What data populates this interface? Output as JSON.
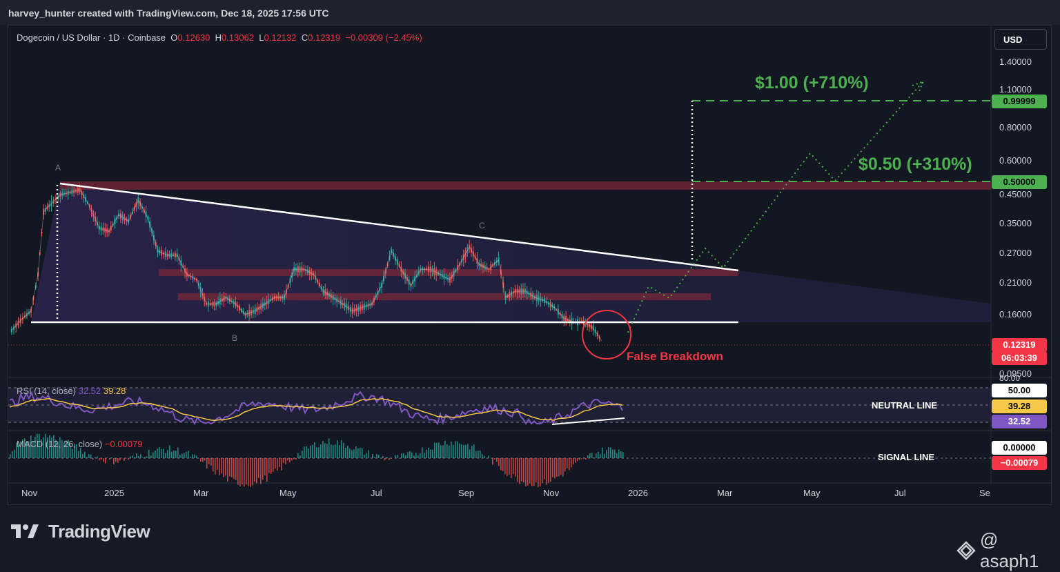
{
  "header": {
    "credit": "harvey_hunter created with TradingView.com, Dec 18, 2025 17:56 UTC"
  },
  "legend": {
    "symbol": "Dogecoin / US Dollar · 1D · Coinbase",
    "o_label": "O",
    "o": "0.12630",
    "h_label": "H",
    "h": "0.13062",
    "l_label": "L",
    "l": "0.12132",
    "c_label": "C",
    "c": "0.12319",
    "change": "−0.00309 (−2.45%)"
  },
  "currency_button": "USD",
  "chart_data": {
    "type": "line",
    "series": [
      {
        "values_by_date": [
          [
            "2024-10-20",
            0.135
          ],
          [
            "2024-10-28",
            0.15
          ],
          [
            "2024-11-03",
            0.16
          ],
          [
            "2024-11-08",
            0.22
          ],
          [
            "2024-11-12",
            0.38
          ],
          [
            "2024-11-16",
            0.4
          ],
          [
            "2024-11-24",
            0.44
          ],
          [
            "2024-12-01",
            0.45
          ],
          [
            "2024-12-08",
            0.46
          ],
          [
            "2024-12-15",
            0.4
          ],
          [
            "2024-12-22",
            0.33
          ],
          [
            "2024-12-29",
            0.32
          ],
          [
            "2025-01-05",
            0.37
          ],
          [
            "2025-01-12",
            0.35
          ],
          [
            "2025-01-19",
            0.42
          ],
          [
            "2025-01-26",
            0.36
          ],
          [
            "2025-02-02",
            0.27
          ],
          [
            "2025-02-09",
            0.26
          ],
          [
            "2025-02-16",
            0.26
          ],
          [
            "2025-02-23",
            0.22
          ],
          [
            "2025-03-02",
            0.21
          ],
          [
            "2025-03-09",
            0.17
          ],
          [
            "2025-03-16",
            0.17
          ],
          [
            "2025-03-23",
            0.18
          ],
          [
            "2025-03-30",
            0.17
          ],
          [
            "2025-04-06",
            0.155
          ],
          [
            "2025-04-13",
            0.16
          ],
          [
            "2025-04-20",
            0.17
          ],
          [
            "2025-04-27",
            0.18
          ],
          [
            "2025-05-04",
            0.18
          ],
          [
            "2025-05-11",
            0.23
          ],
          [
            "2025-05-18",
            0.23
          ],
          [
            "2025-05-25",
            0.22
          ],
          [
            "2025-06-01",
            0.19
          ],
          [
            "2025-06-08",
            0.18
          ],
          [
            "2025-06-15",
            0.17
          ],
          [
            "2025-06-22",
            0.16
          ],
          [
            "2025-06-29",
            0.165
          ],
          [
            "2025-07-06",
            0.17
          ],
          [
            "2025-07-13",
            0.2
          ],
          [
            "2025-07-20",
            0.27
          ],
          [
            "2025-07-27",
            0.23
          ],
          [
            "2025-08-03",
            0.2
          ],
          [
            "2025-08-10",
            0.23
          ],
          [
            "2025-08-17",
            0.23
          ],
          [
            "2025-08-24",
            0.22
          ],
          [
            "2025-08-31",
            0.21
          ],
          [
            "2025-09-07",
            0.24
          ],
          [
            "2025-09-14",
            0.28
          ],
          [
            "2025-09-21",
            0.24
          ],
          [
            "2025-09-28",
            0.23
          ],
          [
            "2025-10-05",
            0.25
          ],
          [
            "2025-10-10",
            0.18
          ],
          [
            "2025-10-17",
            0.19
          ],
          [
            "2025-10-24",
            0.19
          ],
          [
            "2025-10-31",
            0.18
          ],
          [
            "2025-11-07",
            0.175
          ],
          [
            "2025-11-14",
            0.165
          ],
          [
            "2025-11-21",
            0.15
          ],
          [
            "2025-11-28",
            0.145
          ],
          [
            "2025-12-05",
            0.145
          ],
          [
            "2025-12-12",
            0.138
          ],
          [
            "2025-12-18",
            0.12319
          ]
        ]
      }
    ],
    "y_scale": "log",
    "y_ticks": [
      "1.40000",
      "1.10000",
      "0.80000",
      "0.60000",
      "0.45000",
      "0.35000",
      "0.27000",
      "0.21000",
      "0.16000",
      "0.09500"
    ],
    "x_ticks": [
      "Nov",
      "2025",
      "Mar",
      "May",
      "Jul",
      "Sep",
      "Nov",
      "2026",
      "Mar",
      "May",
      "Jul",
      "Se"
    ],
    "annotations": {
      "target_1": "$1.00 (+710%)",
      "target_2": "$0.50 (+310%)",
      "false_breakdown": "False Breakdown",
      "wave_a": "A",
      "wave_b": "B",
      "wave_c": "C"
    },
    "price_tags": {
      "target_1": "0.99999",
      "target_2": "0.50000",
      "last_price": "0.12319",
      "countdown": "06:03:39"
    },
    "rsi": {
      "label": "RSI (14, close)",
      "value": "32.52",
      "ma_value": "39.28",
      "upper_level": "80.00",
      "mid_level": "50.00",
      "annotation": "NEUTRAL LINE",
      "tags": {
        "mid": "50.00",
        "ma": "39.28",
        "rsi": "32.52"
      }
    },
    "macd": {
      "label": "MACD (12, 26, close)",
      "value": "−0.00079",
      "annotation": "SIGNAL LINE",
      "tags": {
        "zero": "0.00000",
        "macd": "−0.00079"
      }
    },
    "colors": {
      "bull": "#26a69a",
      "bear": "#ef5350",
      "target": "#4caf50",
      "alert": "#f23645",
      "rsi": "#7e57c2",
      "rsi_ma": "#f7c948"
    }
  },
  "branding": {
    "logo_text": "TradingView",
    "watermark": "@ asaph1"
  }
}
